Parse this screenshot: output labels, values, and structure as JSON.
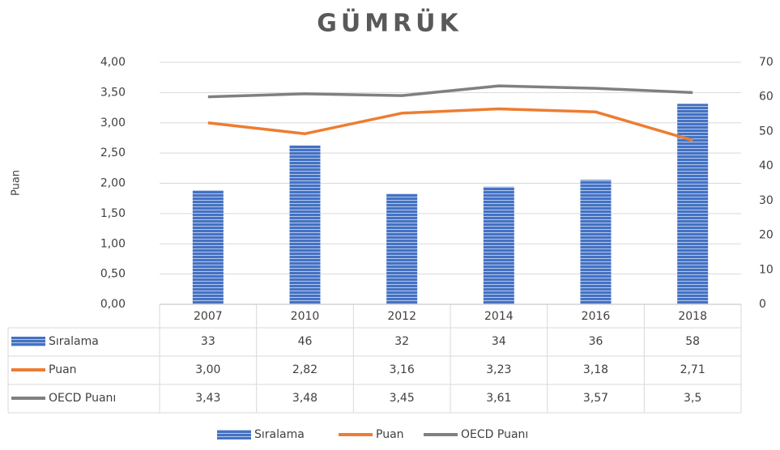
{
  "chart_data": {
    "type": "bar-line",
    "title": "GÜMRÜK",
    "y_label": "Puan",
    "categories": [
      "2007",
      "2010",
      "2012",
      "2014",
      "2016",
      "2018"
    ],
    "series": [
      {
        "name": "Sıralama",
        "type": "bar",
        "axis": "y2",
        "color": "#4472c4",
        "values": [
          33,
          46,
          32,
          34,
          36,
          58
        ]
      },
      {
        "name": "Puan",
        "type": "line",
        "color": "#ed7d31",
        "values": [
          3.0,
          2.82,
          3.16,
          3.23,
          3.18,
          2.71
        ],
        "value_labels": [
          "3,00",
          "2,82",
          "3,16",
          "3,23",
          "3,18",
          "2,71"
        ]
      },
      {
        "name": "OECD Puanı",
        "type": "line",
        "color": "#808080",
        "values": [
          3.43,
          3.48,
          3.45,
          3.61,
          3.57,
          3.5
        ],
        "value_labels": [
          "3,43",
          "3,48",
          "3,45",
          "3,61",
          "3,57",
          "3,5"
        ]
      }
    ],
    "ylim": [
      0,
      4
    ],
    "yticks": [
      {
        "value": 0,
        "label": "0,00"
      },
      {
        "value": 0.5,
        "label": "0,50"
      },
      {
        "value": 1,
        "label": "1,00"
      },
      {
        "value": 1.5,
        "label": "1,50"
      },
      {
        "value": 2,
        "label": "2,00"
      },
      {
        "value": 2.5,
        "label": "2,50"
      },
      {
        "value": 3,
        "label": "3,00"
      },
      {
        "value": 3.5,
        "label": "3,50"
      },
      {
        "value": 4,
        "label": "4,00"
      }
    ],
    "y2lim": [
      0,
      70
    ],
    "y2ticks": [
      0,
      10,
      20,
      30,
      40,
      50,
      60,
      70
    ],
    "grid": true
  }
}
